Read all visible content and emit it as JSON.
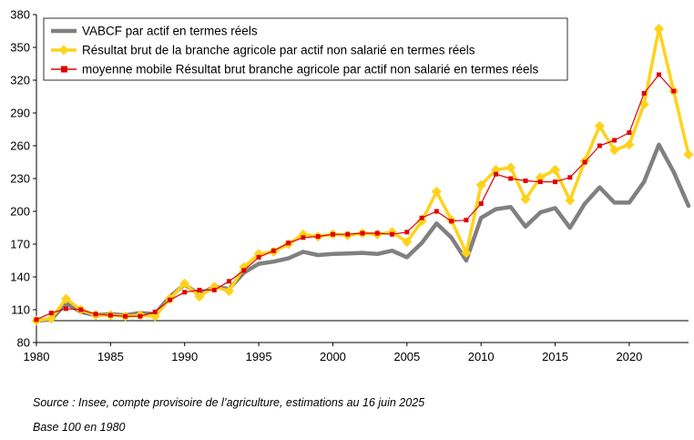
{
  "chart_data": {
    "type": "line",
    "title": "",
    "xlabel": "",
    "ylabel": "",
    "xlim": [
      1980,
      2024
    ],
    "ylim": [
      80,
      380
    ],
    "x_ticks": [
      1980,
      1985,
      1990,
      1995,
      2000,
      2005,
      2010,
      2015,
      2020
    ],
    "y_ticks": [
      80,
      110,
      140,
      170,
      200,
      230,
      260,
      290,
      320,
      350,
      380
    ],
    "reference_line": 100,
    "grid": false,
    "legend_position": "top-left",
    "x": [
      1980,
      1981,
      1982,
      1983,
      1984,
      1985,
      1986,
      1987,
      1988,
      1989,
      1990,
      1991,
      1992,
      1993,
      1994,
      1995,
      1996,
      1997,
      1998,
      1999,
      2000,
      2001,
      2002,
      2003,
      2004,
      2005,
      2006,
      2007,
      2008,
      2009,
      2010,
      2011,
      2012,
      2013,
      2014,
      2015,
      2016,
      2017,
      2018,
      2019,
      2020,
      2021,
      2022,
      2023,
      2024
    ],
    "series": [
      {
        "name": "VABCF par actif en termes réels",
        "color": "#808080",
        "marker": "none",
        "values": [
          100,
          101,
          116,
          108,
          105,
          106,
          105,
          107,
          106,
          122,
          133,
          124,
          131,
          129,
          144,
          152,
          154,
          157,
          163,
          160,
          161,
          161.5,
          162,
          161,
          164,
          158,
          171,
          189,
          176,
          155,
          194,
          202,
          204,
          186,
          199,
          203,
          185,
          207,
          222,
          208,
          208,
          227,
          261,
          236,
          205
        ]
      },
      {
        "name": "Résultat brut de la branche agricole par actif non salarié en termes réels",
        "color": "#ffd21c",
        "marker": "diamond",
        "values": [
          100,
          102,
          120,
          110,
          105,
          105,
          104,
          105,
          104,
          120,
          134,
          122,
          131,
          127,
          149,
          161,
          163,
          170,
          179,
          177,
          179,
          178,
          180,
          179,
          181,
          172,
          191,
          218,
          192,
          162,
          224,
          238,
          240,
          211,
          231,
          238,
          210,
          246,
          278,
          256,
          261,
          298,
          367,
          310,
          252
        ]
      },
      {
        "name": "moyenne mobile Résultat brut branche agricole par actif non salarié en termes réels",
        "color": "#e00000",
        "marker": "square",
        "values": [
          101,
          107,
          111,
          110,
          106,
          105,
          104,
          104,
          108,
          119,
          126,
          128,
          128,
          136,
          146,
          158,
          164,
          171,
          176,
          177,
          179,
          179,
          180,
          180,
          179,
          181,
          194,
          200,
          191,
          192,
          207,
          234,
          230,
          228,
          227,
          227,
          231,
          245,
          260,
          265,
          272,
          308,
          325,
          310,
          null
        ]
      }
    ]
  },
  "footnotes": {
    "source": "Source : Insee, compte provisoire de l’agriculture, estimations au 16 juin 2025",
    "base": "Base 100 en 1980"
  }
}
